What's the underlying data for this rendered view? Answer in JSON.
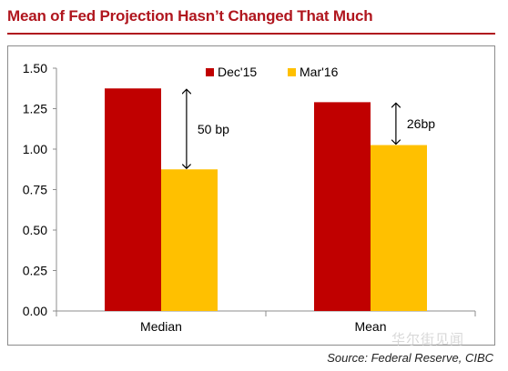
{
  "title": "Mean of Fed Projection Hasn’t Changed That Much",
  "source": "Source: Federal Reserve, CIBC",
  "watermark": "华尔街见闻",
  "colors": {
    "title": "#b0161e",
    "dec15": "#c00000",
    "mar16": "#ffc000",
    "axis": "#8c8c8c"
  },
  "chart_data": {
    "type": "bar",
    "categories": [
      "Median",
      "Mean"
    ],
    "series": [
      {
        "name": "Dec'15",
        "values": [
          1.375,
          1.29
        ]
      },
      {
        "name": "Mar'16",
        "values": [
          0.875,
          1.025
        ]
      }
    ],
    "ylim": [
      0,
      1.5
    ],
    "yticks": [
      0,
      0.25,
      0.5,
      0.75,
      1.0,
      1.25,
      1.5
    ],
    "ytick_labels": [
      "0.00",
      "0.25",
      "0.50",
      "0.75",
      "1.00",
      "1.25",
      "1.50"
    ],
    "annotations": [
      {
        "category": "Median",
        "text": "50 bp"
      },
      {
        "category": "Mean",
        "text": "26bp"
      }
    ],
    "legend_position": "top-center",
    "grid": false
  }
}
